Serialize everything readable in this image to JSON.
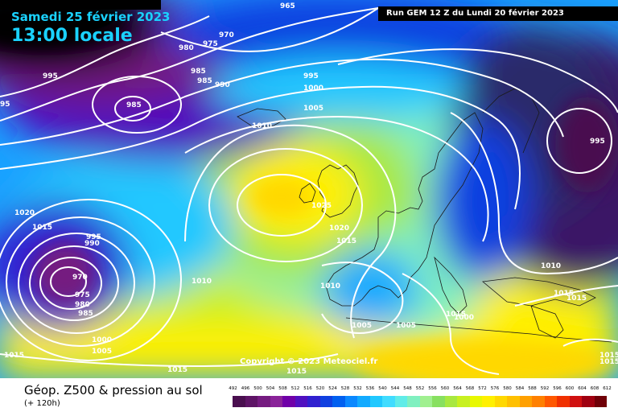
{
  "header": {
    "date_line": "Samedi 25 février 2023",
    "time_line": "13:00 locale",
    "run_label": "Run GEM 12 Z du Lundi 20 février 2023"
  },
  "footer": {
    "product_title": "Géop. Z500 & pression au sol",
    "forecast_hour": "(+ 120h)"
  },
  "copyright": "Copyright © 2023 Meteociel.fr",
  "legend": {
    "ticks": [
      "492",
      "496",
      "500",
      "504",
      "508",
      "512",
      "516",
      "520",
      "524",
      "528",
      "532",
      "536",
      "540",
      "544",
      "548",
      "552",
      "556",
      "560",
      "564",
      "568",
      "572",
      "576",
      "580",
      "584",
      "588",
      "592",
      "596",
      "600",
      "604",
      "608",
      "612"
    ],
    "colors": [
      "#4a0f4f",
      "#5e1466",
      "#751b80",
      "#8a2399",
      "#7000a8",
      "#5010c0",
      "#3020d0",
      "#1040e0",
      "#0060f0",
      "#0a88ff",
      "#12aaff",
      "#20c8ff",
      "#40dcff",
      "#60ece8",
      "#80f0c0",
      "#a0f090",
      "#88e060",
      "#a8e840",
      "#c8f020",
      "#e8f800",
      "#fff000",
      "#ffd800",
      "#ffc000",
      "#ffa000",
      "#ff8000",
      "#ff5800",
      "#f03000",
      "#d01010",
      "#a00010",
      "#700008"
    ]
  },
  "isobar_labels": [
    {
      "text": "965"
    },
    {
      "text": "970"
    },
    {
      "text": "975"
    },
    {
      "text": "980"
    },
    {
      "text": "985"
    },
    {
      "text": "985"
    },
    {
      "text": "990"
    },
    {
      "text": "995"
    },
    {
      "text": "995"
    },
    {
      "text": "1000"
    },
    {
      "text": "1005"
    },
    {
      "text": "1010"
    },
    {
      "text": "985"
    },
    {
      "text": "95"
    },
    {
      "text": "1020"
    },
    {
      "text": "1015"
    },
    {
      "text": "995"
    },
    {
      "text": "990"
    },
    {
      "text": "970"
    },
    {
      "text": "975"
    },
    {
      "text": "980"
    },
    {
      "text": "985"
    },
    {
      "text": "1000"
    },
    {
      "text": "1005"
    },
    {
      "text": "1015"
    },
    {
      "text": "1010"
    },
    {
      "text": "1025"
    },
    {
      "text": "1020"
    },
    {
      "text": "1015"
    },
    {
      "text": "1010"
    },
    {
      "text": "1005"
    },
    {
      "text": "1005"
    },
    {
      "text": "1010"
    },
    {
      "text": "1015"
    },
    {
      "text": "1015"
    },
    {
      "text": "1015"
    },
    {
      "text": "1015"
    },
    {
      "text": "1000"
    },
    {
      "text": "1015"
    },
    {
      "text": "995"
    },
    {
      "text": "1015"
    },
    {
      "text": "1015"
    }
  ]
}
